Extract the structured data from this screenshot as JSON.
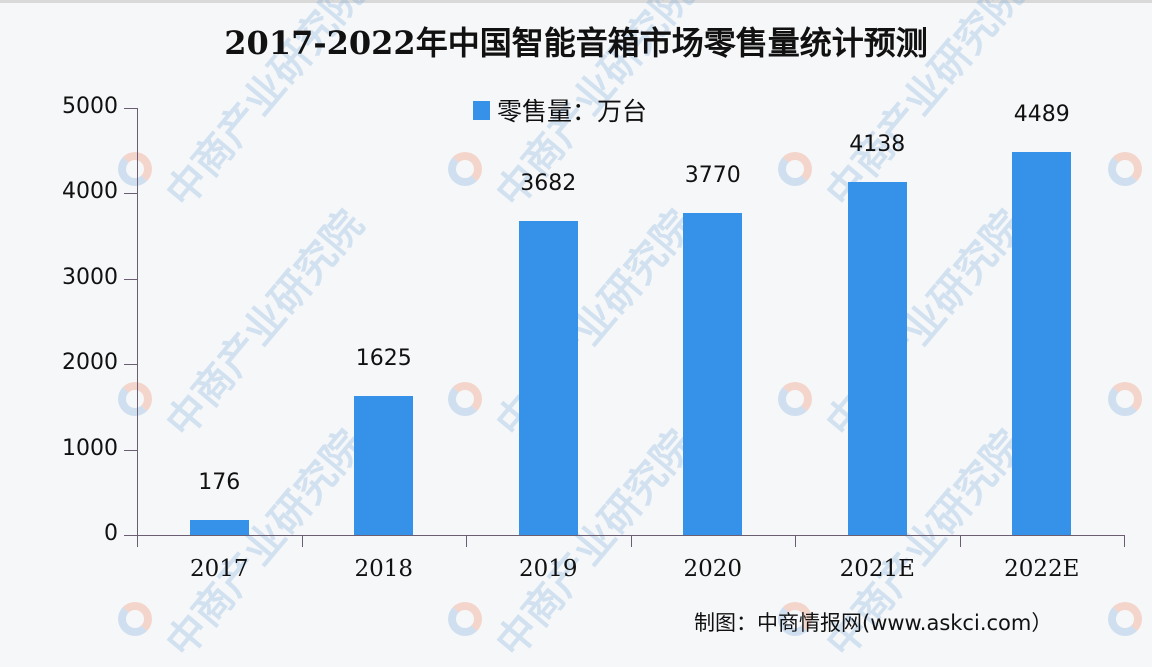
{
  "chart_data": {
    "type": "bar",
    "title": "2017-2022年中国智能音箱市场零售量统计预测",
    "categories": [
      "2017",
      "2018",
      "2019",
      "2020",
      "2021E",
      "2022E"
    ],
    "series": [
      {
        "name": "零售量：万台",
        "values": [
          176,
          1625,
          3682,
          3770,
          4138,
          4489
        ],
        "color": "#3592e8"
      }
    ],
    "data_labels": [
      "176",
      "1625",
      "3682",
      "3770",
      "4138",
      "4489"
    ],
    "xlabel": "",
    "ylabel": "",
    "ylim": [
      0,
      5000
    ],
    "yticks": [
      "0",
      "1000",
      "2000",
      "3000",
      "4000",
      "5000"
    ],
    "grid": false,
    "legend_position": "top-center"
  },
  "legend": {
    "label": "零售量：万台"
  },
  "source": "制图：中商情报网(www.askci.com）",
  "watermark": "中商产业研究院"
}
